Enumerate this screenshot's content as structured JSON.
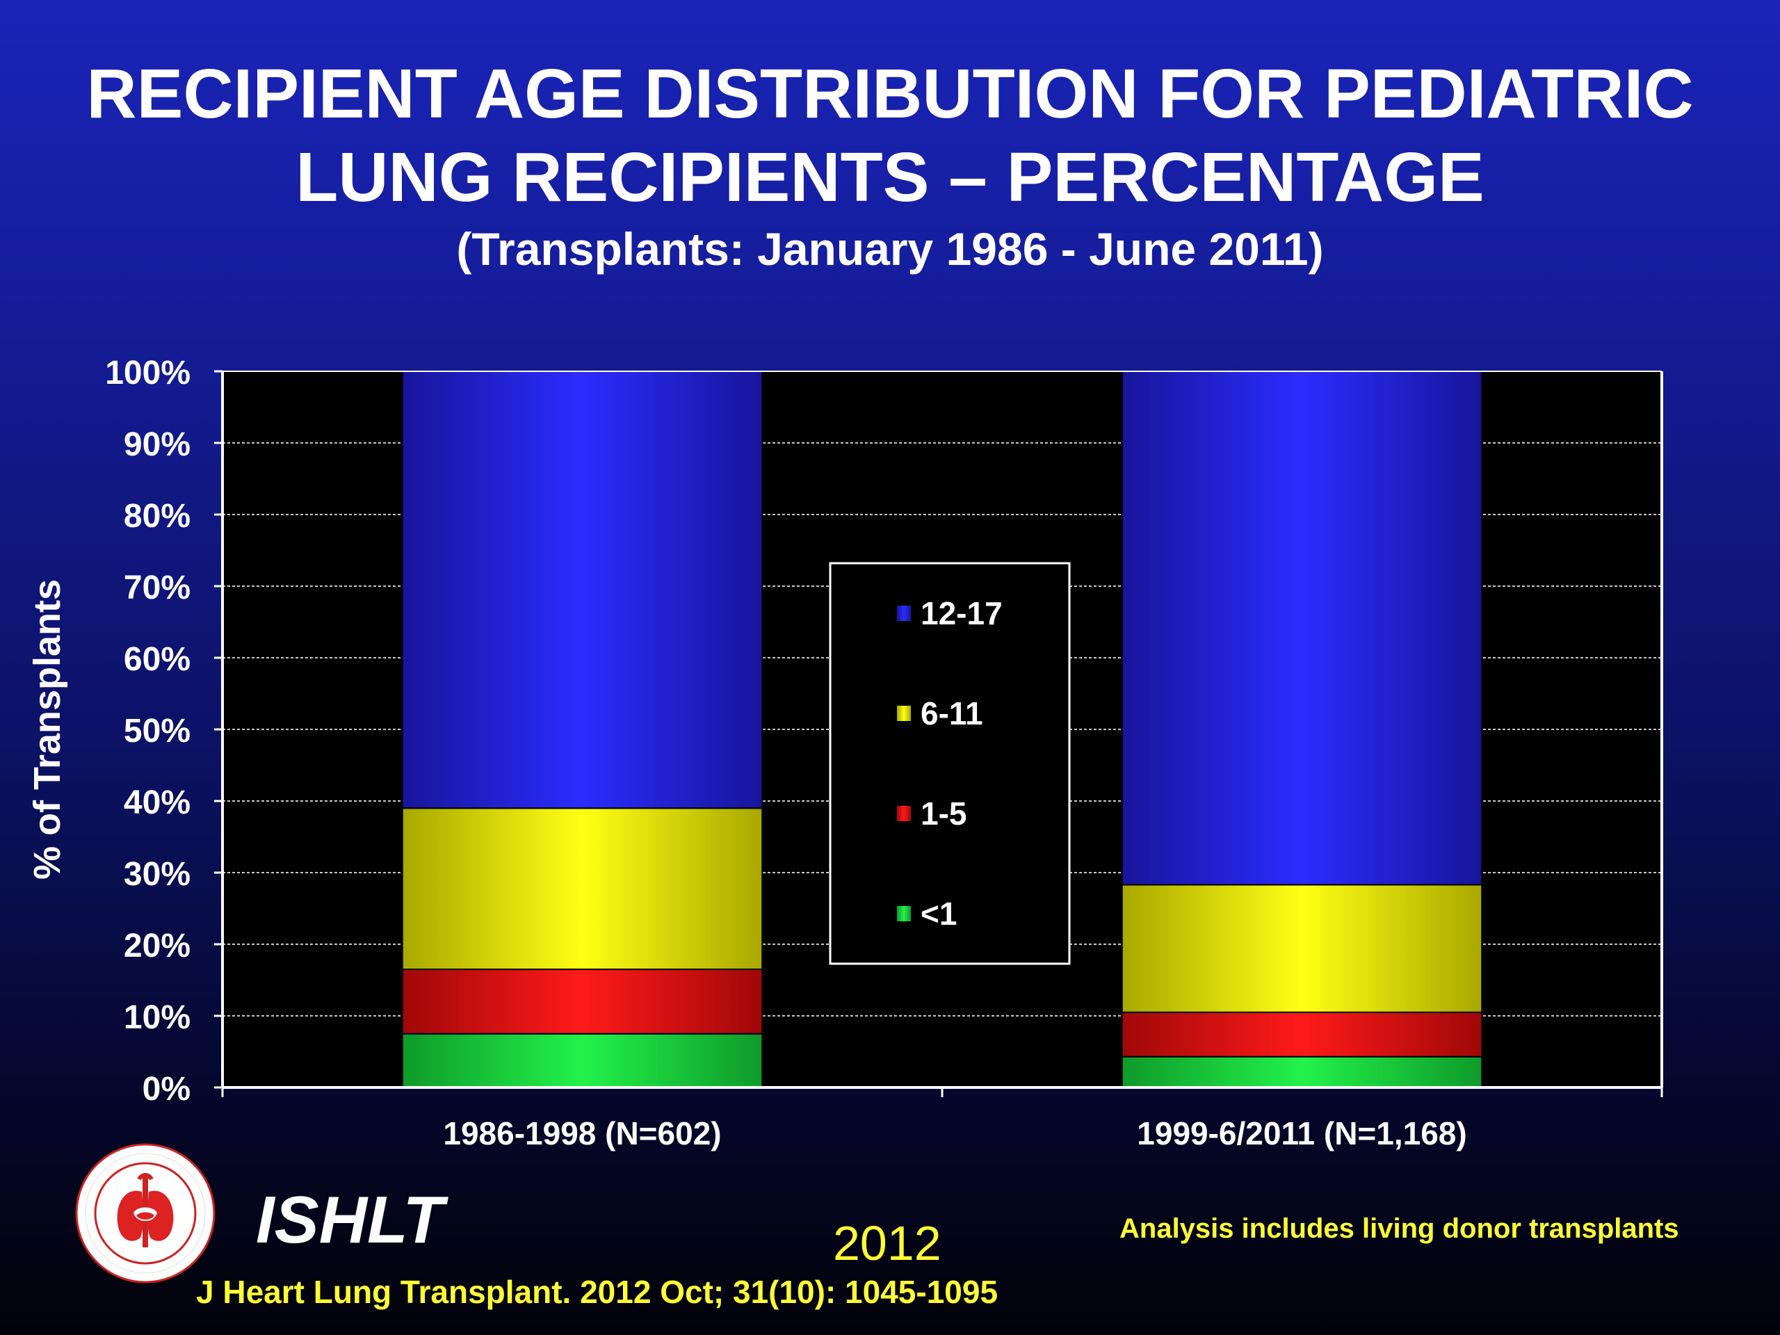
{
  "title": {
    "line1": "RECIPIENT AGE DISTRIBUTION FOR PEDIATRIC",
    "line2": "LUNG RECIPIENTS – PERCENTAGE",
    "subtitle": "(Transplants: January 1986 - June 2011)"
  },
  "chart_data": {
    "type": "bar",
    "stacked": true,
    "categories": [
      "1986-1998 (N=602)",
      "1999-6/2011 (N=1,168)"
    ],
    "series": [
      {
        "name": "<1",
        "values": [
          7.5,
          4.3
        ],
        "color": "#22ee44"
      },
      {
        "name": "1-5",
        "values": [
          9.0,
          6.2
        ],
        "color": "#ee1111"
      },
      {
        "name": "6-11",
        "values": [
          22.5,
          17.8
        ],
        "color": "#f4f400"
      },
      {
        "name": "12-17",
        "values": [
          61.0,
          71.7
        ],
        "color": "#2a2aff"
      }
    ],
    "legend_order": [
      "12-17",
      "6-11",
      "1-5",
      "<1"
    ],
    "ylabel": "% of Transplants",
    "ylim": [
      0,
      100
    ],
    "yticks": [
      "0%",
      "10%",
      "20%",
      "30%",
      "40%",
      "50%",
      "60%",
      "70%",
      "80%",
      "90%",
      "100%"
    ],
    "grid": true,
    "legend_position": "center"
  },
  "footer": {
    "org": "ISHLT",
    "year": "2012",
    "note": "Analysis includes living donor transplants",
    "citation": "J Heart Lung Transplant.  2012 Oct; 31(10): 1045-1095"
  },
  "logo": {
    "text": "INTERNATIONAL SOCIETY FOR HEART & LUNG TRANSPLANTATION"
  }
}
